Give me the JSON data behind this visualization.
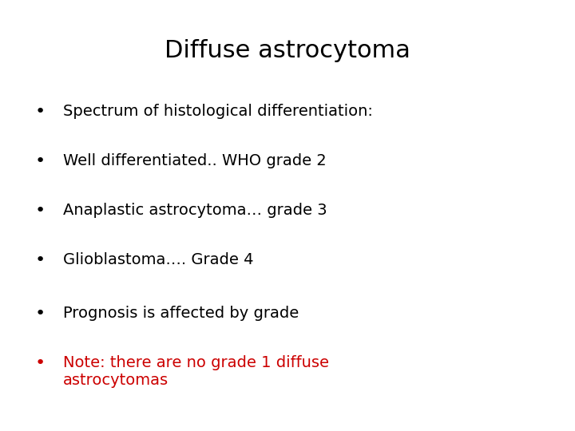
{
  "title": "Diffuse astrocytoma",
  "title_fontsize": 22,
  "title_color": "#000000",
  "background_color": "#ffffff",
  "bullet_items_black": [
    "Spectrum of histological differentiation:",
    "Well differentiated.. WHO grade 2",
    "Anaplastic astrocytoma… grade 3",
    "Glioblastoma…. Grade 4"
  ],
  "bullet_items_black2": [
    "Prognosis is affected by grade"
  ],
  "bullet_items_red": [
    "Note: there are no grade 1 diffuse\nastrocytomas"
  ],
  "bullet_color_black": "#000000",
  "bullet_color_red": "#cc0000",
  "bullet_fontsize": 14,
  "bullet_char": "•"
}
